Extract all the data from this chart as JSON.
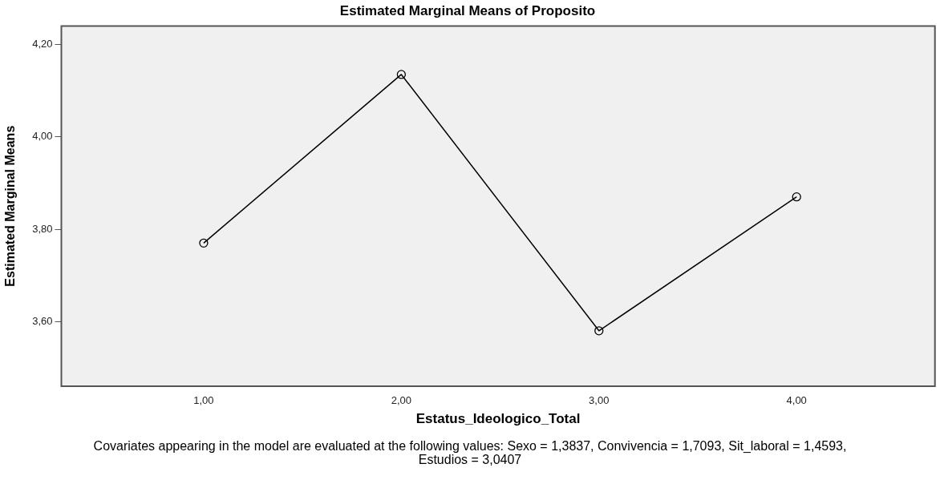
{
  "chart_data": {
    "type": "line",
    "title": "Estimated Marginal Means of Proposito",
    "xlabel": "Estatus_Ideologico_Total",
    "ylabel": "Estimated Marginal Means",
    "annotations": [
      "Covariates appearing in the model are evaluated at the following values: Sexo = 1,3837, Convivencia = 1,7093, Sit_laboral = 1,4593, Estudios = 3,0407"
    ],
    "x": [
      1,
      2,
      3,
      4
    ],
    "series": [
      {
        "color": "#000000",
        "values": [
          3.77,
          4.135,
          3.58,
          3.87
        ]
      }
    ],
    "xlim": [
      0.28,
      4.7
    ],
    "xticks": [
      {
        "value": 1,
        "label": "1,00"
      },
      {
        "value": 2,
        "label": "2,00"
      },
      {
        "value": 3,
        "label": "3,00"
      },
      {
        "value": 4,
        "label": "4,00"
      }
    ],
    "ylim": [
      3.46,
      4.24
    ],
    "yticks": [
      {
        "value": 3.6,
        "label": "3,60"
      },
      {
        "value": 3.8,
        "label": "3,80"
      },
      {
        "value": 4.0,
        "label": "4,00"
      },
      {
        "value": 4.2,
        "label": "4,20"
      }
    ],
    "grid": false,
    "legend": false,
    "marker": "circle",
    "line_style": "solid"
  }
}
